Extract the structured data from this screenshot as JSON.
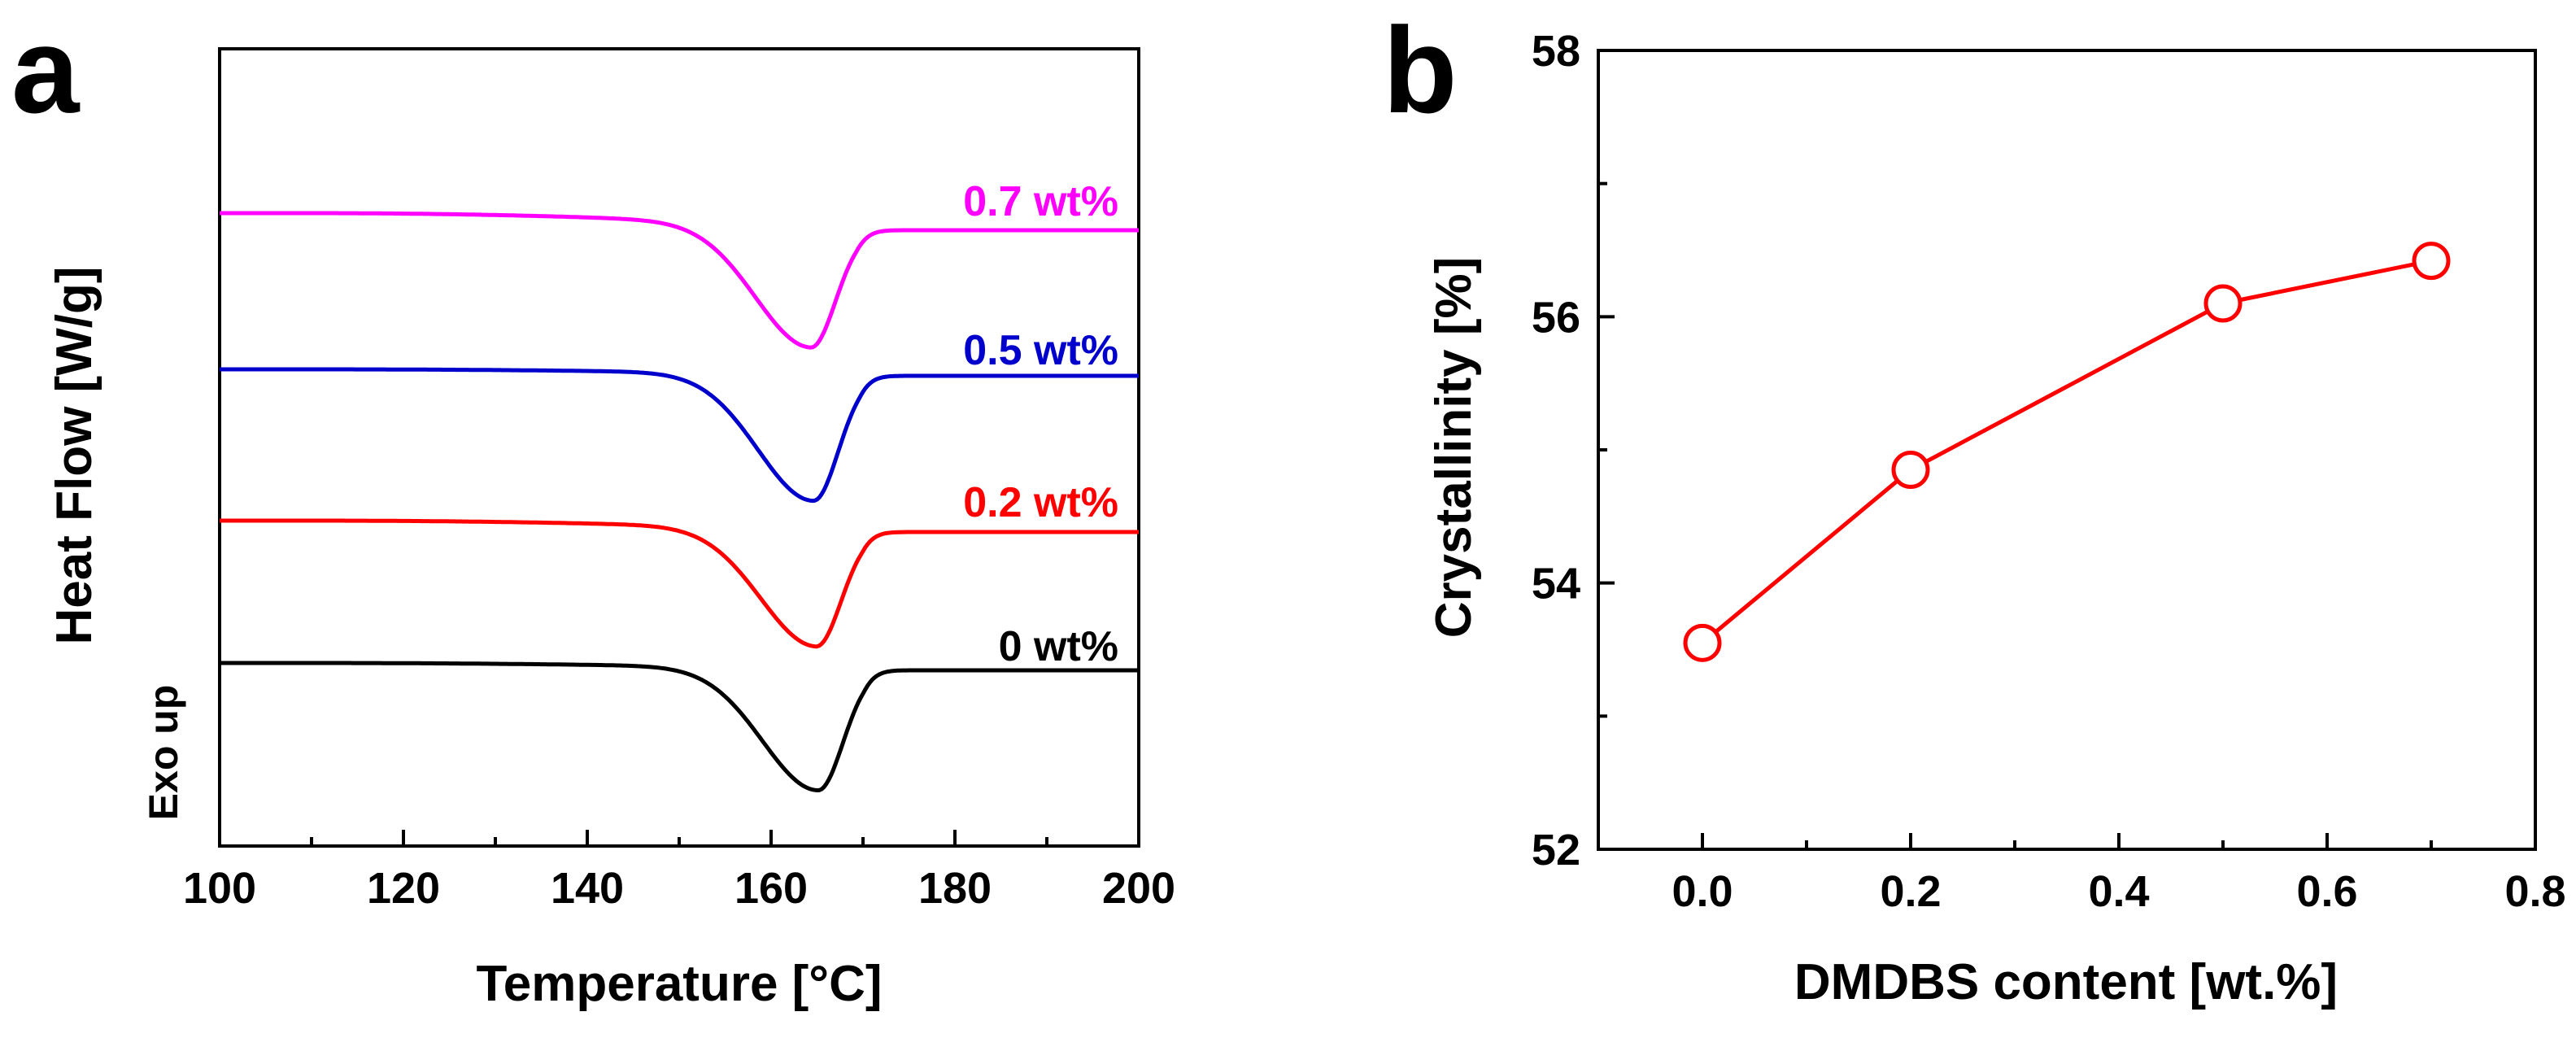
{
  "chart_data": [
    {
      "panel_label": "a",
      "type": "line",
      "title": "",
      "xlabel": "Temperature [°C]",
      "ylabel": "Heat Flow [W/g]",
      "ylabel_secondary": "Exo up",
      "xlim": [
        100,
        200
      ],
      "xticks": [
        100,
        120,
        140,
        160,
        180,
        200
      ],
      "xtick_labels": [
        "100",
        "120",
        "140",
        "160",
        "180",
        "200"
      ],
      "y_ticks_shown": false,
      "series": [
        {
          "name": "0.7 wt%",
          "color": "#ff00ff",
          "label": "0.7 wt%",
          "baseline_start": 0.0,
          "baseline_end": 0.0,
          "peak_temperature": 164.3,
          "peak_depth": 1.0
        },
        {
          "name": "0.5 wt%",
          "color": "#0000cc",
          "label": "0.5 wt%",
          "baseline_start": 0.0,
          "baseline_end": 0.0,
          "peak_temperature": 164.6,
          "peak_depth": 1.0
        },
        {
          "name": "0.2 wt%",
          "color": "#ff0000",
          "label": "0.2 wt%",
          "baseline_start": 0.0,
          "baseline_end": 0.0,
          "peak_temperature": 164.9,
          "peak_depth": 1.0
        },
        {
          "name": "0 wt%",
          "color": "#000000",
          "label": "0 wt%",
          "baseline_start": 0.0,
          "baseline_end": 0.0,
          "peak_temperature": 165.1,
          "peak_depth": 1.0
        }
      ]
    },
    {
      "panel_label": "b",
      "type": "line",
      "title": "",
      "xlabel": "DMDBS content [wt.%]",
      "ylabel": "Crystallinity [%]",
      "xlim": [
        -0.1,
        0.8
      ],
      "ylim": [
        52,
        58
      ],
      "xticks": [
        0.0,
        0.2,
        0.4,
        0.6,
        0.8
      ],
      "xtick_labels": [
        "0.0",
        "0.2",
        "0.4",
        "0.6",
        "0.8"
      ],
      "yticks": [
        52,
        54,
        56,
        58
      ],
      "ytick_labels": [
        "52",
        "54",
        "56",
        "58"
      ],
      "series": [
        {
          "name": "Crystallinity",
          "color": "#ff0000",
          "marker": "open-circle",
          "x": [
            0.0,
            0.2,
            0.5,
            0.7
          ],
          "y": [
            53.55,
            54.85,
            56.1,
            56.42
          ]
        }
      ]
    }
  ]
}
